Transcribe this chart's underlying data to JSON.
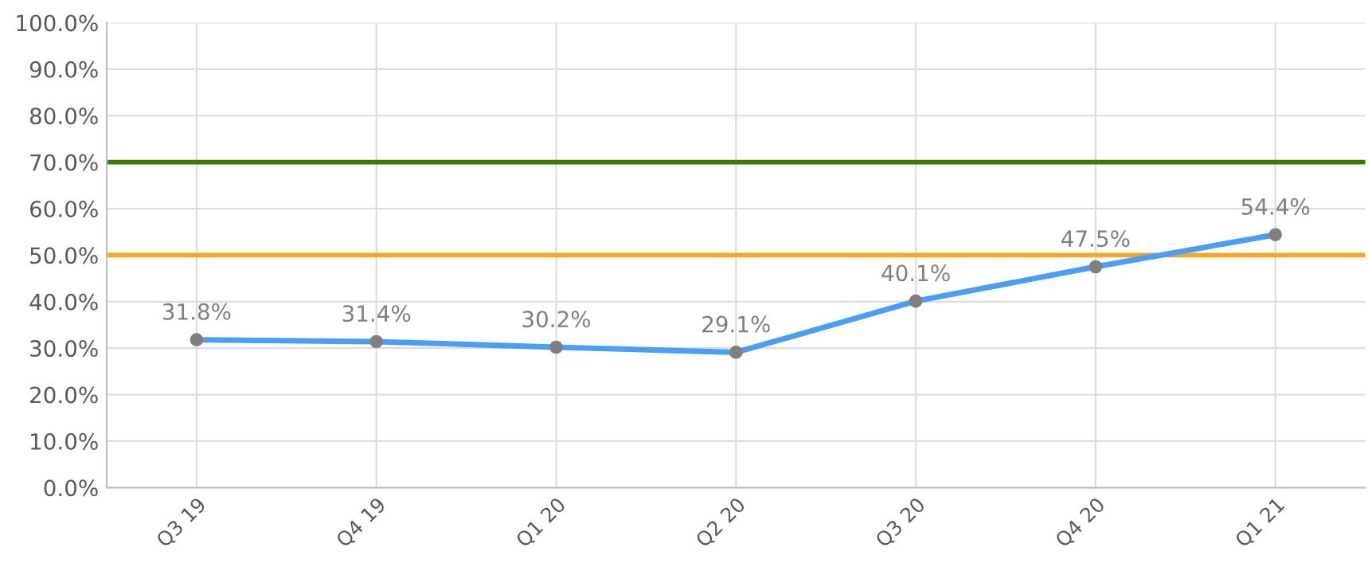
{
  "chart_data": {
    "type": "line",
    "categories": [
      "Q3 19",
      "Q4 19",
      "Q1 20",
      "Q2 20",
      "Q3 20",
      "Q4 20",
      "Q1 21"
    ],
    "series": [
      {
        "color": "#4a9ff5",
        "values": [
          31.8,
          31.4,
          30.2,
          29.1,
          40.1,
          47.5,
          54.4
        ],
        "value_labels": [
          "31.8%",
          "31.4%",
          "30.2%",
          "29.1%",
          "40.1%",
          "47.5%",
          "54.4%"
        ]
      }
    ],
    "ylim": [
      0,
      100
    ],
    "yticks": [
      {
        "value": 0,
        "label": "0.0%"
      },
      {
        "value": 10,
        "label": "10.0%"
      },
      {
        "value": 20,
        "label": "20.0%"
      },
      {
        "value": 30,
        "label": "30.0%"
      },
      {
        "value": 40,
        "label": "40.0%"
      },
      {
        "value": 50,
        "label": "50.0%"
      },
      {
        "value": 60,
        "label": "60.0%"
      },
      {
        "value": 70,
        "label": "70.0%"
      },
      {
        "value": 80,
        "label": "80.0%"
      },
      {
        "value": 90,
        "label": "90.0%"
      },
      {
        "value": 100,
        "label": "100.0%"
      }
    ],
    "ref_lines": [
      {
        "axis": "y",
        "value": 70,
        "color": "#3d7a00"
      },
      {
        "axis": "y",
        "value": 50,
        "color": "#f5a623"
      }
    ],
    "grid": true,
    "marker": "circle",
    "line_style": "solid",
    "legend": false
  }
}
